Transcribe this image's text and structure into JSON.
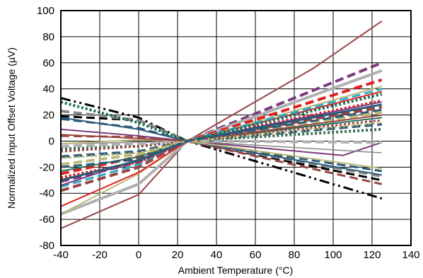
{
  "chart_data": {
    "type": "line",
    "title": "",
    "xlabel": "Ambient Temperature (°C)",
    "ylabel": "Normalized Input Offset Voltage (µV)",
    "xlim": [
      -40,
      140
    ],
    "ylim": [
      -80,
      100
    ],
    "xticks": [
      -40,
      -20,
      0,
      20,
      40,
      60,
      80,
      100,
      120,
      140
    ],
    "yticks": [
      -80,
      -60,
      -40,
      -20,
      0,
      20,
      40,
      60,
      80,
      100
    ],
    "grid": true,
    "legend": "none",
    "series": [
      {
        "color": "#9b4444",
        "style": "solid",
        "width": 2,
        "points": [
          [
            -40,
            -67
          ],
          [
            0,
            -41
          ],
          [
            25,
            0
          ],
          [
            90,
            56
          ],
          [
            125,
            92
          ]
        ]
      },
      {
        "color": "#7b3a7b",
        "style": "dashed",
        "width": 4,
        "points": [
          [
            -40,
            -31
          ],
          [
            0,
            -16
          ],
          [
            25,
            0
          ],
          [
            125,
            60
          ]
        ]
      },
      {
        "color": "#b0b0b0",
        "style": "solid",
        "width": 4,
        "points": [
          [
            -40,
            -56
          ],
          [
            0,
            -33
          ],
          [
            25,
            0
          ],
          [
            125,
            54
          ]
        ]
      },
      {
        "color": "#e02020",
        "style": "dashed",
        "width": 4,
        "points": [
          [
            -40,
            -25
          ],
          [
            0,
            -12
          ],
          [
            25,
            0
          ],
          [
            125,
            47
          ]
        ]
      },
      {
        "color": "#bcb87a",
        "style": "solid",
        "width": 2,
        "points": [
          [
            -40,
            -56
          ],
          [
            0,
            -25
          ],
          [
            25,
            0
          ],
          [
            125,
            42
          ]
        ]
      },
      {
        "color": "#e02020",
        "style": "solid",
        "width": 2,
        "points": [
          [
            -40,
            -50
          ],
          [
            0,
            -24
          ],
          [
            25,
            0
          ],
          [
            125,
            38
          ]
        ]
      },
      {
        "color": "#2aa9c8",
        "style": "dashed",
        "width": 3,
        "points": [
          [
            -40,
            -35
          ],
          [
            0,
            -18
          ],
          [
            25,
            0
          ],
          [
            125,
            40
          ]
        ]
      },
      {
        "color": "#e02020",
        "style": "dotted",
        "width": 4,
        "points": [
          [
            -40,
            -28
          ],
          [
            0,
            -16
          ],
          [
            25,
            0
          ],
          [
            125,
            31
          ]
        ]
      },
      {
        "color": "#9b4444",
        "style": "dashed",
        "width": 4,
        "points": [
          [
            -40,
            -38
          ],
          [
            0,
            -20
          ],
          [
            25,
            0
          ],
          [
            125,
            26
          ]
        ]
      },
      {
        "color": "#1f6f57",
        "style": "solid",
        "width": 2,
        "points": [
          [
            -40,
            -23
          ],
          [
            0,
            -12
          ],
          [
            25,
            0
          ],
          [
            125,
            18
          ]
        ]
      },
      {
        "color": "#2a5a78",
        "style": "dashed",
        "width": 4,
        "points": [
          [
            -40,
            -12
          ],
          [
            0,
            -8
          ],
          [
            25,
            0
          ],
          [
            125,
            13
          ]
        ]
      },
      {
        "color": "#3c6e4e",
        "style": "dotted",
        "width": 4,
        "points": [
          [
            -40,
            -6
          ],
          [
            0,
            -4
          ],
          [
            25,
            0
          ],
          [
            125,
            9
          ]
        ]
      },
      {
        "color": "#bcb87a",
        "style": "dashed",
        "width": 4,
        "points": [
          [
            -40,
            -18
          ],
          [
            0,
            -10
          ],
          [
            25,
            0
          ],
          [
            125,
            22
          ]
        ]
      },
      {
        "color": "#7b3a7b",
        "style": "solid",
        "width": 2,
        "points": [
          [
            -40,
            -34
          ],
          [
            0,
            -14
          ],
          [
            25,
            0
          ],
          [
            125,
            30
          ]
        ]
      },
      {
        "color": "#2a5a78",
        "style": "solid",
        "width": 3,
        "points": [
          [
            -40,
            -30
          ],
          [
            0,
            -15
          ],
          [
            25,
            0
          ],
          [
            125,
            28
          ]
        ]
      },
      {
        "color": "#9b4444",
        "style": "dotted",
        "width": 3,
        "points": [
          [
            -40,
            -8
          ],
          [
            0,
            -4
          ],
          [
            25,
            0
          ],
          [
            125,
            16
          ]
        ]
      },
      {
        "color": "#000000",
        "style": "dashdotdot",
        "width": 3,
        "points": [
          [
            -40,
            33
          ],
          [
            0,
            18
          ],
          [
            25,
            0
          ],
          [
            125,
            -44
          ]
        ]
      },
      {
        "color": "#000000",
        "style": "dashed",
        "width": 3,
        "points": [
          [
            -40,
            19
          ],
          [
            0,
            16
          ],
          [
            25,
            0
          ],
          [
            125,
            -30
          ]
        ]
      },
      {
        "color": "#2a5a78",
        "style": "dashed",
        "width": 3,
        "points": [
          [
            -40,
            17
          ],
          [
            0,
            10
          ],
          [
            25,
            0
          ],
          [
            125,
            -23
          ]
        ]
      },
      {
        "color": "#888888",
        "style": "dashed",
        "width": 4,
        "points": [
          [
            -40,
            23
          ],
          [
            0,
            16
          ],
          [
            25,
            0
          ],
          [
            125,
            -27
          ]
        ]
      },
      {
        "color": "#9b4444",
        "style": "dashed",
        "width": 3,
        "points": [
          [
            -40,
            4
          ],
          [
            0,
            3
          ],
          [
            25,
            0
          ],
          [
            125,
            -33
          ]
        ]
      },
      {
        "color": "#2a5a78",
        "style": "solid",
        "width": 2,
        "points": [
          [
            -40,
            18
          ],
          [
            0,
            9
          ],
          [
            25,
            0
          ],
          [
            125,
            -26
          ]
        ]
      },
      {
        "color": "#7b3a7b",
        "style": "solid",
        "width": 2,
        "points": [
          [
            -40,
            9
          ],
          [
            0,
            4
          ],
          [
            25,
            0
          ],
          [
            105,
            -11
          ],
          [
            125,
            -1
          ]
        ]
      },
      {
        "color": "#888888",
        "style": "solid",
        "width": 1.5,
        "points": [
          [
            -40,
            -2
          ],
          [
            0,
            -1
          ],
          [
            25,
            0
          ],
          [
            125,
            -9
          ]
        ]
      },
      {
        "color": "#b0b0b0",
        "style": "dashed",
        "width": 4,
        "points": [
          [
            -40,
            -4
          ],
          [
            0,
            -2
          ],
          [
            25,
            0
          ],
          [
            125,
            -1
          ]
        ]
      },
      {
        "color": "#bcb87a",
        "style": "solid",
        "width": 2,
        "points": [
          [
            -40,
            -2
          ],
          [
            0,
            1
          ],
          [
            25,
            0
          ],
          [
            125,
            -21
          ]
        ]
      },
      {
        "color": "#9b4444",
        "style": "solid",
        "width": 2,
        "points": [
          [
            -40,
            5
          ],
          [
            0,
            2
          ],
          [
            25,
            0
          ],
          [
            125,
            20
          ]
        ]
      },
      {
        "color": "#1f6f57",
        "style": "dotted",
        "width": 4,
        "points": [
          [
            -40,
            30
          ],
          [
            0,
            14
          ],
          [
            25,
            0
          ],
          [
            125,
            36
          ]
        ]
      },
      {
        "color": "#bcb87a",
        "style": "dotted",
        "width": 3,
        "points": [
          [
            -40,
            -13
          ],
          [
            0,
            -9
          ],
          [
            25,
            0
          ],
          [
            125,
            14
          ]
        ]
      },
      {
        "color": "#2a5a78",
        "style": "dashed",
        "width": 3,
        "points": [
          [
            -40,
            -20
          ],
          [
            0,
            -14
          ],
          [
            25,
            0
          ],
          [
            125,
            24
          ]
        ]
      }
    ]
  }
}
